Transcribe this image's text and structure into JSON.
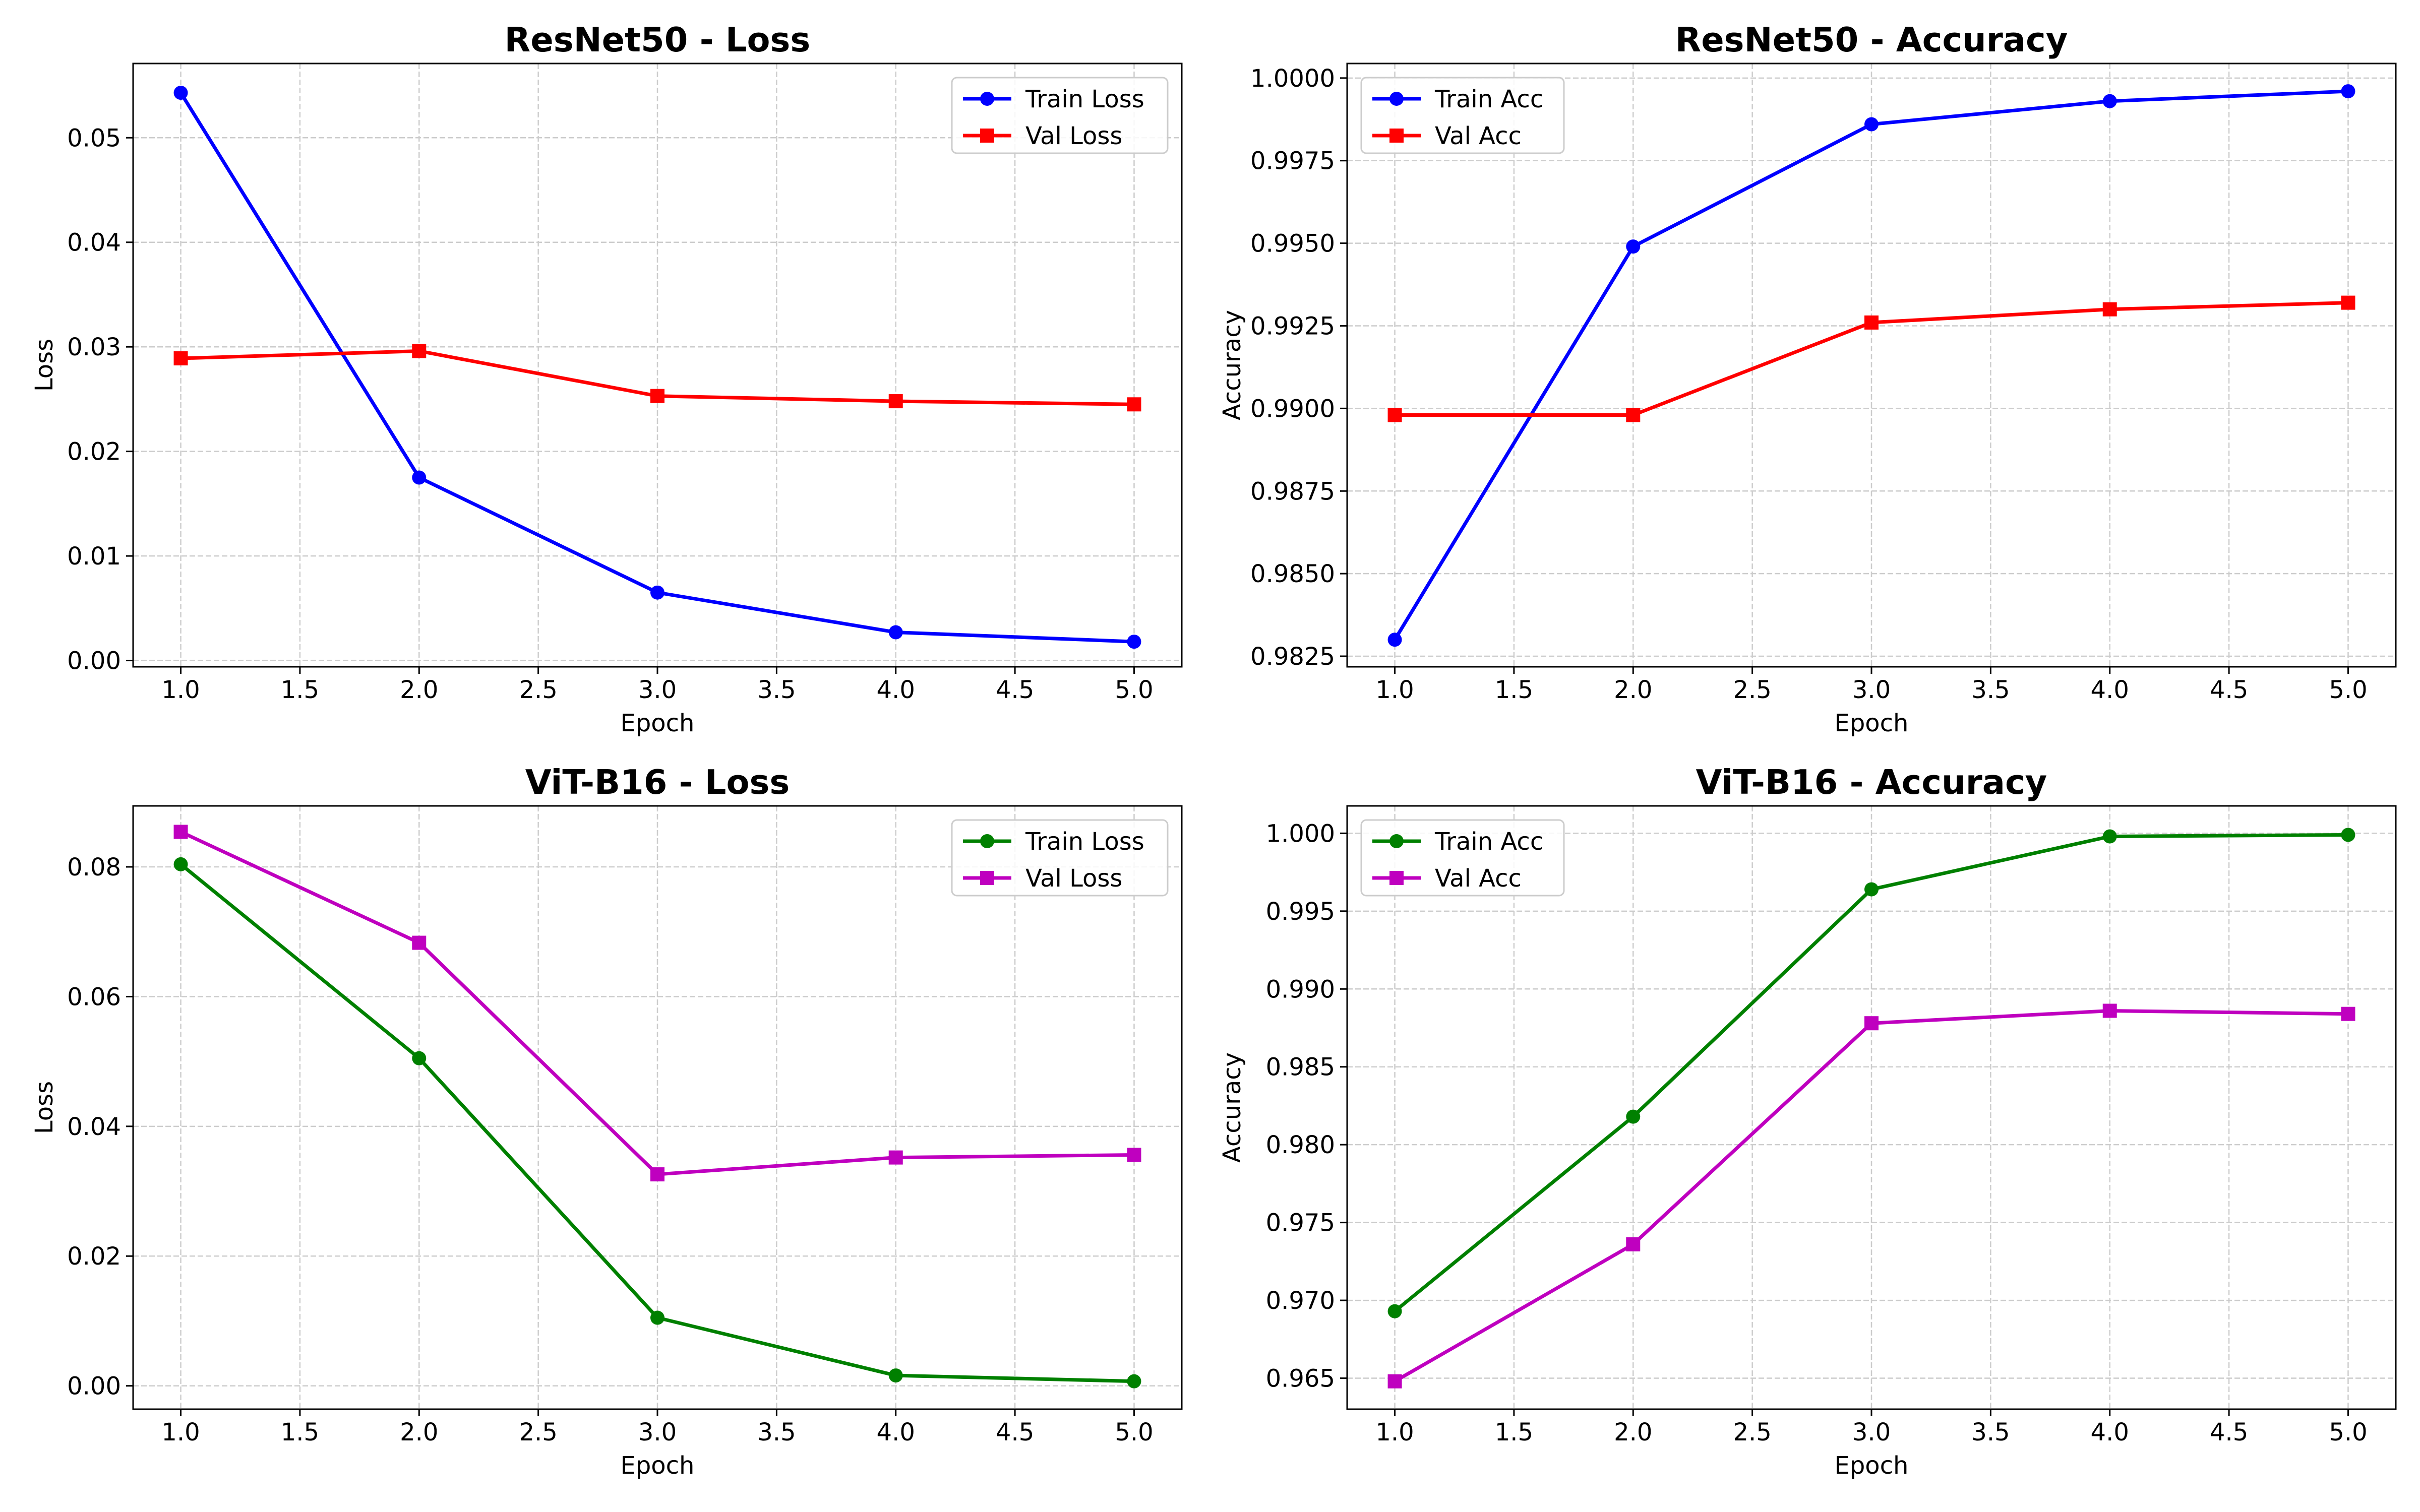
{
  "colors": {
    "resnet_train": "#0000ff",
    "resnet_val": "#ff0000",
    "vit_train": "#008000",
    "vit_val": "#bf00bf",
    "grid": "#cccccc"
  },
  "chart_data": [
    {
      "type": "line",
      "title": "ResNet50 - Loss",
      "xlabel": "Epoch",
      "ylabel": "Loss",
      "x": [
        1,
        2,
        3,
        4,
        5
      ],
      "xlim": [
        0.8,
        5.2
      ],
      "ylim": [
        -0.0006,
        0.0571
      ],
      "xticks": [
        "1.0",
        "1.5",
        "2.0",
        "2.5",
        "3.0",
        "3.5",
        "4.0",
        "4.5",
        "5.0"
      ],
      "xtick_values": [
        1.0,
        1.5,
        2.0,
        2.5,
        3.0,
        3.5,
        4.0,
        4.5,
        5.0
      ],
      "yticks": [
        "0.00",
        "0.01",
        "0.02",
        "0.03",
        "0.04",
        "0.05"
      ],
      "ytick_values": [
        0,
        0.01,
        0.02,
        0.03,
        0.04,
        0.05
      ],
      "legend_position": "top-right",
      "series": [
        {
          "name": "Train Loss",
          "values": [
            0.0543,
            0.0175,
            0.0065,
            0.0027,
            0.0018
          ],
          "marker": "circle",
          "color": "#0000ff"
        },
        {
          "name": "Val Loss",
          "values": [
            0.0289,
            0.0296,
            0.0253,
            0.0248,
            0.0245
          ],
          "marker": "square",
          "color": "#ff0000"
        }
      ]
    },
    {
      "type": "line",
      "title": "ResNet50 - Accuracy",
      "xlabel": "Epoch",
      "ylabel": "Accuracy",
      "x": [
        1,
        2,
        3,
        4,
        5
      ],
      "xlim": [
        0.8,
        5.2
      ],
      "ylim": [
        0.98218,
        1.00044
      ],
      "xticks": [
        "1.0",
        "1.5",
        "2.0",
        "2.5",
        "3.0",
        "3.5",
        "4.0",
        "4.5",
        "5.0"
      ],
      "xtick_values": [
        1.0,
        1.5,
        2.0,
        2.5,
        3.0,
        3.5,
        4.0,
        4.5,
        5.0
      ],
      "yticks": [
        "0.9825",
        "0.9850",
        "0.9875",
        "0.9900",
        "0.9925",
        "0.9950",
        "0.9975",
        "1.0000"
      ],
      "ytick_values": [
        0.9825,
        0.985,
        0.9875,
        0.99,
        0.9925,
        0.995,
        0.9975,
        1.0
      ],
      "legend_position": "top-left",
      "series": [
        {
          "name": "Train Acc",
          "values": [
            0.983,
            0.9949,
            0.9986,
            0.9993,
            0.9996
          ],
          "marker": "circle",
          "color": "#0000ff"
        },
        {
          "name": "Val Acc",
          "values": [
            0.9898,
            0.9898,
            0.9926,
            0.993,
            0.9932
          ],
          "marker": "square",
          "color": "#ff0000"
        }
      ]
    },
    {
      "type": "line",
      "title": "ViT-B16 - Loss",
      "xlabel": "Epoch",
      "ylabel": "Loss",
      "x": [
        1,
        2,
        3,
        4,
        5
      ],
      "xlim": [
        0.8,
        5.2
      ],
      "ylim": [
        -0.0036,
        0.0894
      ],
      "xticks": [
        "1.0",
        "1.5",
        "2.0",
        "2.5",
        "3.0",
        "3.5",
        "4.0",
        "4.5",
        "5.0"
      ],
      "xtick_values": [
        1.0,
        1.5,
        2.0,
        2.5,
        3.0,
        3.5,
        4.0,
        4.5,
        5.0
      ],
      "yticks": [
        "0.00",
        "0.02",
        "0.04",
        "0.06",
        "0.08"
      ],
      "ytick_values": [
        0,
        0.02,
        0.04,
        0.06,
        0.08
      ],
      "legend_position": "top-right",
      "series": [
        {
          "name": "Train Loss",
          "values": [
            0.0804,
            0.0505,
            0.0105,
            0.0016,
            0.0007
          ],
          "marker": "circle",
          "color": "#008000"
        },
        {
          "name": "Val Loss",
          "values": [
            0.0854,
            0.0683,
            0.0326,
            0.0352,
            0.0356
          ],
          "marker": "square",
          "color": "#bf00bf"
        }
      ]
    },
    {
      "type": "line",
      "title": "ViT-B16 - Accuracy",
      "xlabel": "Epoch",
      "ylabel": "Accuracy",
      "x": [
        1,
        2,
        3,
        4,
        5
      ],
      "xlim": [
        0.8,
        5.2
      ],
      "ylim": [
        0.96301,
        1.00176
      ],
      "xticks": [
        "1.0",
        "1.5",
        "2.0",
        "2.5",
        "3.0",
        "3.5",
        "4.0",
        "4.5",
        "5.0"
      ],
      "xtick_values": [
        1.0,
        1.5,
        2.0,
        2.5,
        3.0,
        3.5,
        4.0,
        4.5,
        5.0
      ],
      "yticks": [
        "0.965",
        "0.970",
        "0.975",
        "0.980",
        "0.985",
        "0.990",
        "0.995",
        "1.000"
      ],
      "ytick_values": [
        0.965,
        0.97,
        0.975,
        0.98,
        0.985,
        0.99,
        0.995,
        1.0
      ],
      "legend_position": "top-left",
      "series": [
        {
          "name": "Train Acc",
          "values": [
            0.9693,
            0.9818,
            0.9964,
            0.9998,
            0.9999
          ],
          "marker": "circle",
          "color": "#008000"
        },
        {
          "name": "Val Acc",
          "values": [
            0.9648,
            0.9736,
            0.9878,
            0.9886,
            0.9884
          ],
          "marker": "square",
          "color": "#bf00bf"
        }
      ]
    }
  ]
}
